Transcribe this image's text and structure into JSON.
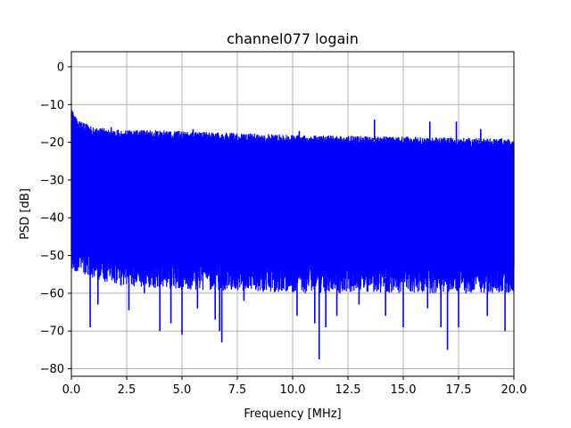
{
  "chart_data": {
    "type": "line",
    "title": "channel077 logain",
    "xlabel": "Frequency [MHz]",
    "ylabel": "PSD [dB]",
    "xlim": [
      0,
      20
    ],
    "ylim": [
      -82,
      4
    ],
    "xticks": [
      0,
      2.5,
      5,
      7.5,
      10,
      12.5,
      15,
      17.5,
      20
    ],
    "xtick_labels": [
      "0.0",
      "2.5",
      "5.0",
      "7.5",
      "10.0",
      "12.5",
      "15.0",
      "17.5",
      "20.0"
    ],
    "yticks": [
      0,
      -10,
      -20,
      -30,
      -40,
      -50,
      -60,
      -70,
      -80
    ],
    "ytick_labels": [
      "0",
      "−10",
      "−20",
      "−30",
      "−40",
      "−50",
      "−60",
      "−70",
      "−80"
    ],
    "grid": true,
    "series": [
      {
        "color": "#0000ff",
        "band_top": [
          [
            0,
            -12
          ],
          [
            0.3,
            -15
          ],
          [
            1,
            -17
          ],
          [
            2,
            -17.5
          ],
          [
            5,
            -18
          ],
          [
            10,
            -19
          ],
          [
            15,
            -19.5
          ],
          [
            20,
            -20
          ]
        ],
        "band_bottom": [
          [
            0,
            -50
          ],
          [
            2,
            -54
          ],
          [
            5,
            -55
          ],
          [
            10,
            -56
          ],
          [
            15,
            -56
          ],
          [
            20,
            -56
          ]
        ],
        "spikes_up": [
          [
            0.05,
            -12
          ],
          [
            1.8,
            -16
          ],
          [
            5.5,
            -16.5
          ],
          [
            13.7,
            -14
          ],
          [
            16.2,
            -14.5
          ],
          [
            17.4,
            -14.5
          ],
          [
            18.5,
            -16.5
          ],
          [
            10.3,
            -17
          ]
        ],
        "spikes_down": [
          [
            0.85,
            -69
          ],
          [
            1.2,
            -63
          ],
          [
            2.6,
            -64.5
          ],
          [
            3.3,
            -60
          ],
          [
            4.0,
            -70
          ],
          [
            4.5,
            -68
          ],
          [
            5.0,
            -71
          ],
          [
            5.7,
            -64
          ],
          [
            6.5,
            -67
          ],
          [
            6.7,
            -70
          ],
          [
            6.8,
            -73
          ],
          [
            7.8,
            -62
          ],
          [
            10.2,
            -66
          ],
          [
            11.0,
            -68
          ],
          [
            11.2,
            -77.5
          ],
          [
            11.5,
            -69
          ],
          [
            12.0,
            -66
          ],
          [
            13.0,
            -63
          ],
          [
            14.2,
            -66
          ],
          [
            15.0,
            -69
          ],
          [
            16.1,
            -64
          ],
          [
            16.7,
            -69
          ],
          [
            17.0,
            -75
          ],
          [
            17.5,
            -69
          ],
          [
            18.8,
            -66
          ],
          [
            19.6,
            -70
          ]
        ]
      }
    ]
  }
}
